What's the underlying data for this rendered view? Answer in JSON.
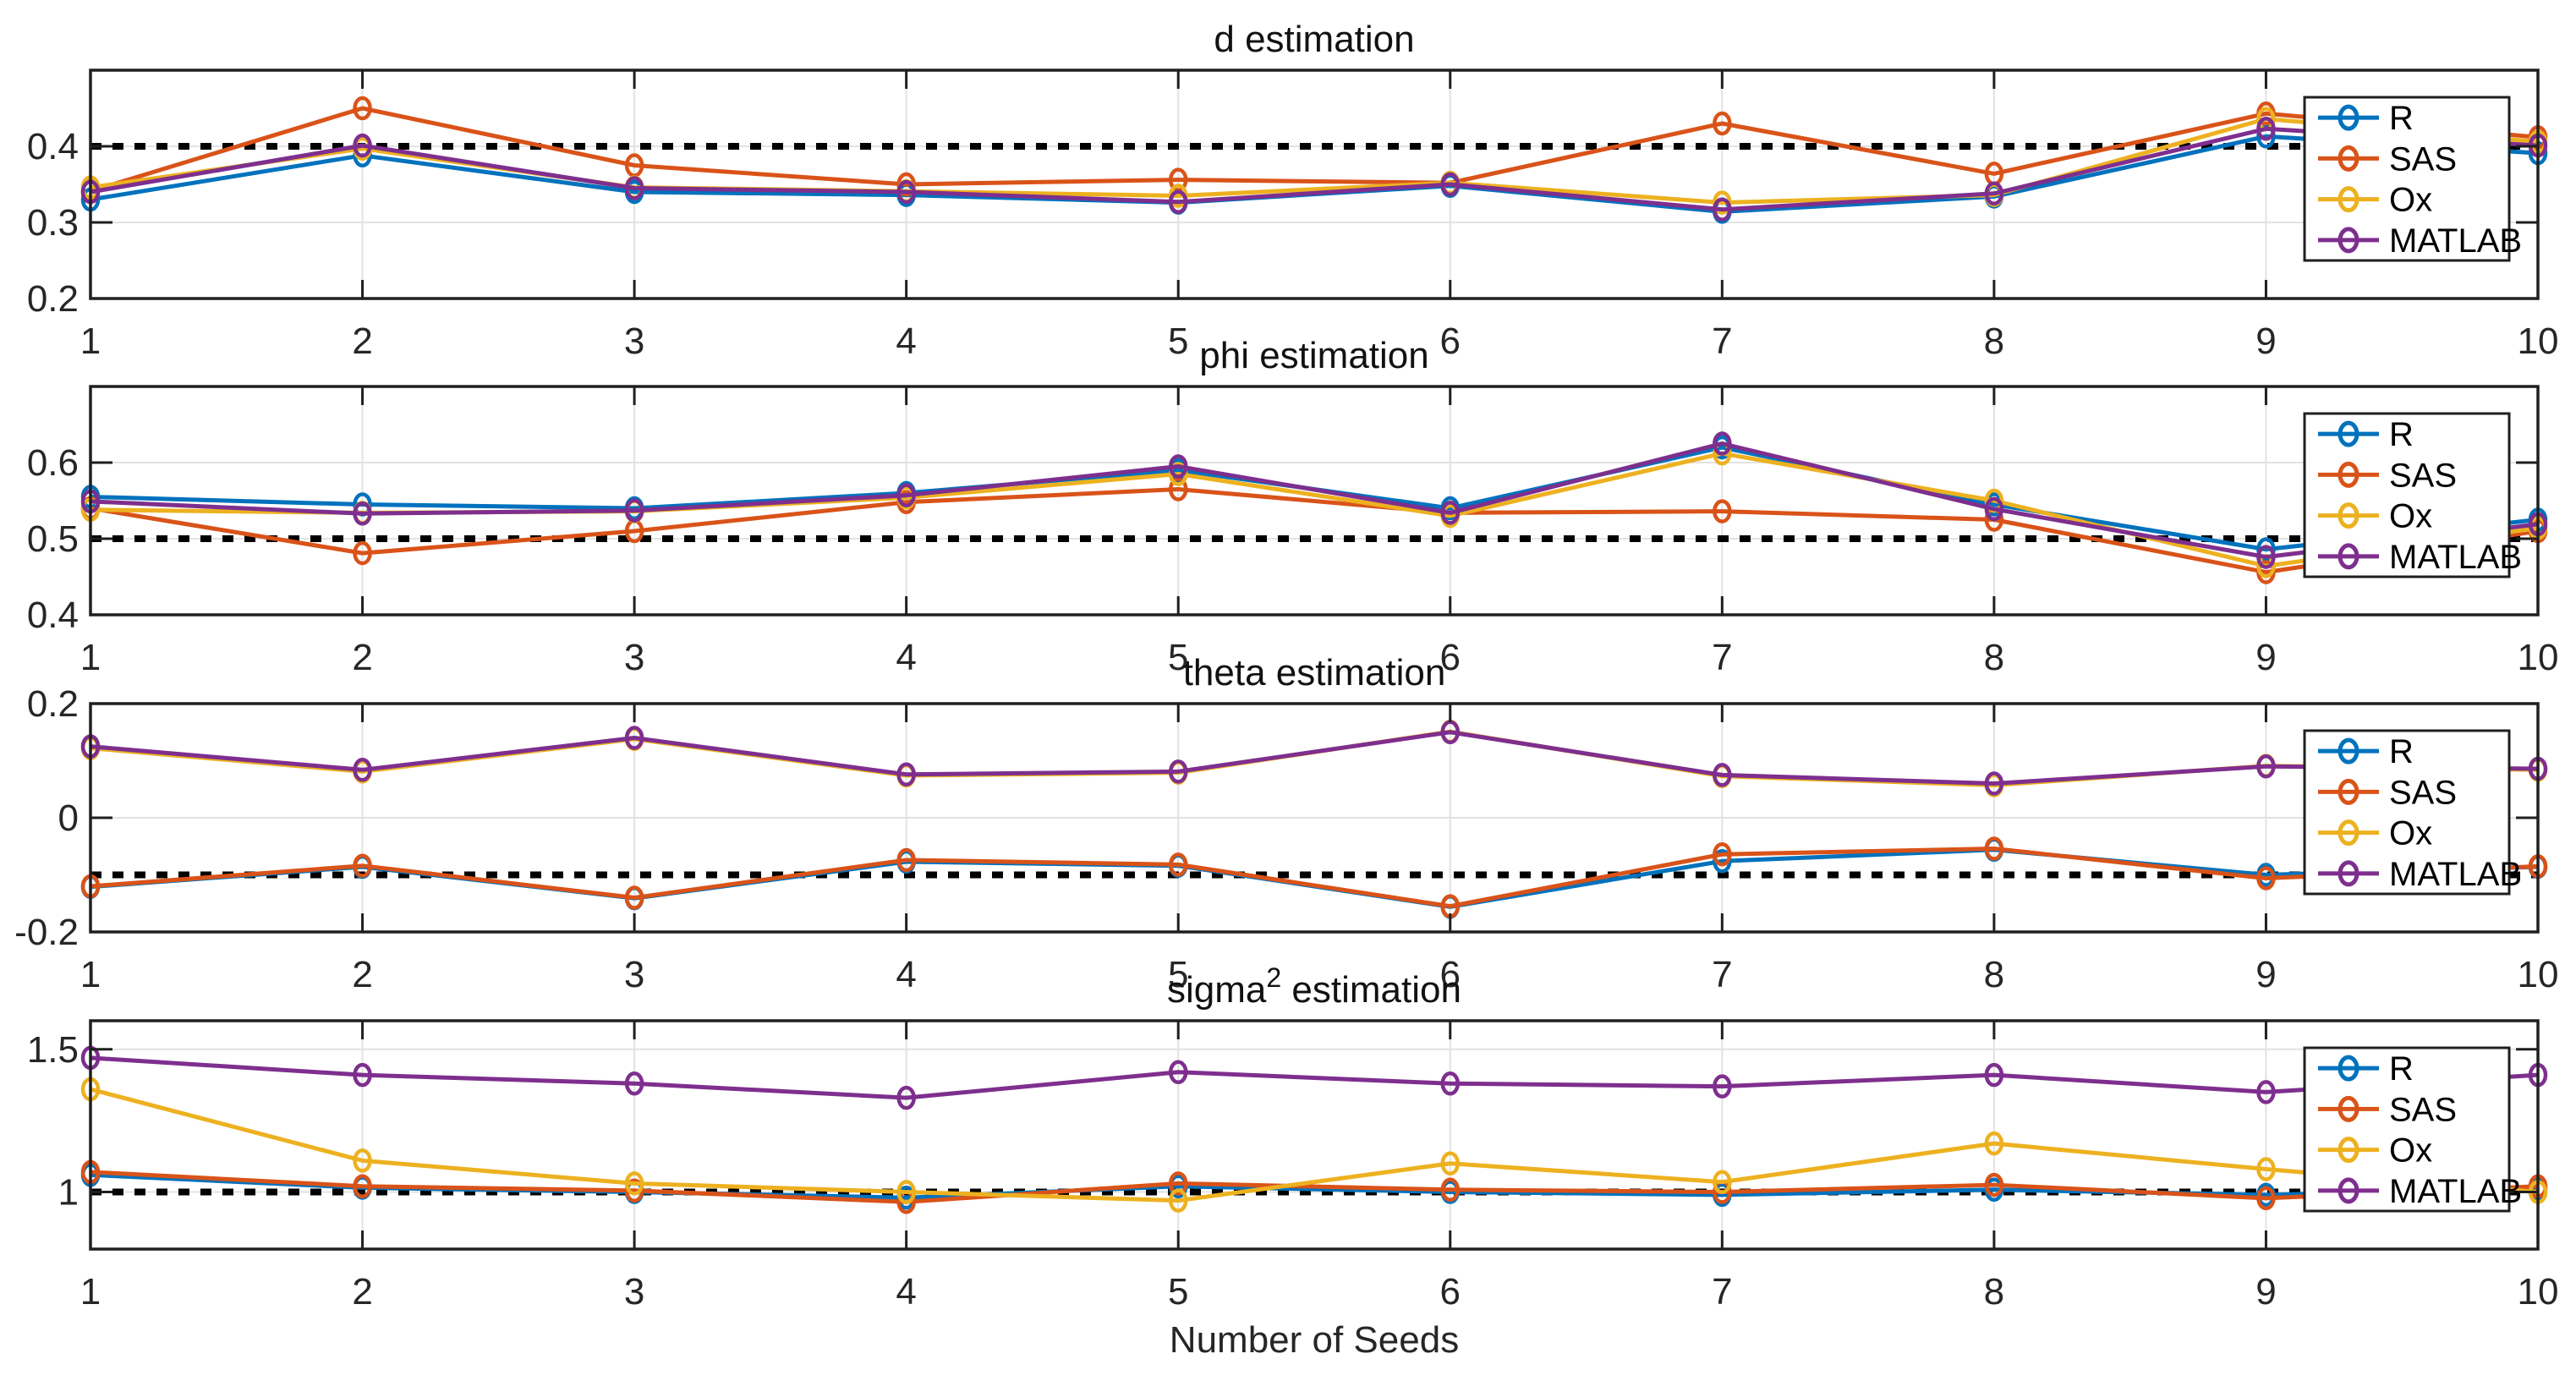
{
  "figure": {
    "xlabel": "Number of Seeds",
    "xticklabels": [
      "1",
      "2",
      "3",
      "4",
      "5",
      "6",
      "7",
      "8",
      "9",
      "10"
    ],
    "background_color": "#ffffff",
    "axis_color": "#1f1f1f",
    "tick_text_color": "#262626",
    "grid_color": "#e2e2e2",
    "ref_line_color": "#000000"
  },
  "legend": {
    "position": "top-right-inside",
    "items": [
      {
        "label": "R",
        "color": "#0072BD"
      },
      {
        "label": "SAS",
        "color": "#D95319"
      },
      {
        "label": "Ox",
        "color": "#EDB120"
      },
      {
        "label": "MATLAB",
        "color": "#7E2F8E"
      }
    ]
  },
  "chart_data": [
    {
      "type": "line",
      "id": "d",
      "title_parts": {
        "base": "d estimation",
        "sup": "",
        "rest": ""
      },
      "x": [
        1,
        2,
        3,
        4,
        5,
        6,
        7,
        8,
        9,
        10
      ],
      "ylim": [
        0.2,
        0.5
      ],
      "yticks": [
        0.2,
        0.3,
        0.4
      ],
      "ytick_labels": [
        "0.2",
        "0.3",
        "0.4"
      ],
      "ref_value": 0.4,
      "grid": true,
      "series": [
        {
          "name": "R",
          "color": "#0072BD",
          "values": [
            0.33,
            0.388,
            0.34,
            0.336,
            0.326,
            0.348,
            0.314,
            0.334,
            0.413,
            0.391
          ]
        },
        {
          "name": "SAS",
          "color": "#D95319",
          "values": [
            0.341,
            0.45,
            0.375,
            0.35,
            0.356,
            0.352,
            0.43,
            0.364,
            0.443,
            0.412
          ]
        },
        {
          "name": "Ox",
          "color": "#EDB120",
          "values": [
            0.346,
            0.397,
            0.346,
            0.341,
            0.335,
            0.352,
            0.326,
            0.336,
            0.436,
            0.406
          ]
        },
        {
          "name": "MATLAB",
          "color": "#7E2F8E",
          "values": [
            0.34,
            0.401,
            0.345,
            0.34,
            0.327,
            0.35,
            0.317,
            0.338,
            0.423,
            0.401
          ]
        }
      ]
    },
    {
      "type": "line",
      "id": "phi",
      "title_parts": {
        "base": "phi estimation",
        "sup": "",
        "rest": ""
      },
      "x": [
        1,
        2,
        3,
        4,
        5,
        6,
        7,
        8,
        9,
        10
      ],
      "ylim": [
        0.4,
        0.7
      ],
      "yticks": [
        0.4,
        0.5,
        0.6
      ],
      "ytick_labels": [
        "0.4",
        "0.5",
        "0.6"
      ],
      "ref_value": 0.5,
      "grid": true,
      "series": [
        {
          "name": "R",
          "color": "#0072BD",
          "values": [
            0.555,
            0.545,
            0.54,
            0.56,
            0.59,
            0.54,
            0.62,
            0.545,
            0.486,
            0.525
          ]
        },
        {
          "name": "SAS",
          "color": "#D95319",
          "values": [
            0.54,
            0.481,
            0.51,
            0.548,
            0.565,
            0.534,
            0.536,
            0.525,
            0.456,
            0.51
          ]
        },
        {
          "name": "Ox",
          "color": "#EDB120",
          "values": [
            0.538,
            0.534,
            0.536,
            0.554,
            0.585,
            0.53,
            0.612,
            0.55,
            0.464,
            0.514
          ]
        },
        {
          "name": "MATLAB",
          "color": "#7E2F8E",
          "values": [
            0.549,
            0.533,
            0.537,
            0.557,
            0.595,
            0.534,
            0.625,
            0.539,
            0.476,
            0.519
          ]
        }
      ]
    },
    {
      "type": "line",
      "id": "theta",
      "title_parts": {
        "base": "theta estimation",
        "sup": "",
        "rest": ""
      },
      "x": [
        1,
        2,
        3,
        4,
        5,
        6,
        7,
        8,
        9,
        10
      ],
      "ylim": [
        -0.2,
        0.2
      ],
      "yticks": [
        -0.2,
        0,
        0.2
      ],
      "ytick_labels": [
        "-0.2",
        "0",
        "0.2"
      ],
      "ref_value": -0.1,
      "grid": true,
      "series": [
        {
          "name": "R",
          "color": "#0072BD",
          "values": [
            -0.121,
            -0.086,
            -0.141,
            -0.077,
            -0.084,
            -0.156,
            -0.076,
            -0.056,
            -0.1,
            -0.086
          ]
        },
        {
          "name": "SAS",
          "color": "#D95319",
          "values": [
            -0.12,
            -0.084,
            -0.14,
            -0.074,
            -0.082,
            -0.155,
            -0.064,
            -0.054,
            -0.106,
            -0.085
          ]
        },
        {
          "name": "Ox",
          "color": "#EDB120",
          "values": [
            0.122,
            0.081,
            0.138,
            0.074,
            0.079,
            0.151,
            0.073,
            0.057,
            0.091,
            0.084
          ]
        },
        {
          "name": "MATLAB",
          "color": "#7E2F8E",
          "values": [
            0.125,
            0.084,
            0.14,
            0.076,
            0.081,
            0.15,
            0.075,
            0.06,
            0.09,
            0.086
          ]
        }
      ]
    },
    {
      "type": "line",
      "id": "sigma2",
      "title_parts": {
        "base": "sigma",
        "sup": "2",
        "rest": " estimation"
      },
      "x": [
        1,
        2,
        3,
        4,
        5,
        6,
        7,
        8,
        9,
        10
      ],
      "ylim": [
        0.8,
        1.6
      ],
      "yticks": [
        1,
        1.5
      ],
      "ytick_labels": [
        "1",
        "1.5"
      ],
      "ref_value": 1.0,
      "grid": true,
      "series": [
        {
          "name": "R",
          "color": "#0072BD",
          "values": [
            1.06,
            1.015,
            1.0,
            0.98,
            1.02,
            1.0,
            0.99,
            1.008,
            0.99,
            1.012
          ]
        },
        {
          "name": "SAS",
          "color": "#D95319",
          "values": [
            1.07,
            1.02,
            1.005,
            0.965,
            1.03,
            1.008,
            1.0,
            1.025,
            0.978,
            1.02
          ]
        },
        {
          "name": "Ox",
          "color": "#EDB120",
          "values": [
            1.36,
            1.11,
            1.03,
            1.0,
            0.97,
            1.1,
            1.035,
            1.17,
            1.08,
            1.0
          ]
        },
        {
          "name": "MATLAB",
          "color": "#7E2F8E",
          "values": [
            1.47,
            1.41,
            1.38,
            1.33,
            1.42,
            1.38,
            1.37,
            1.41,
            1.35,
            1.41
          ]
        }
      ]
    }
  ]
}
